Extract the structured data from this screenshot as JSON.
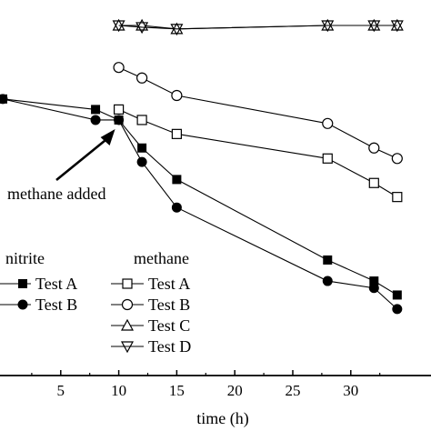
{
  "chart_data": {
    "type": "line",
    "title": "",
    "xlabel": "time (h)",
    "ylabel": "",
    "xlim": [
      0,
      36.6
    ],
    "ylim": [
      0,
      1
    ],
    "x_ticks": [
      5,
      10,
      15,
      20,
      25,
      30
    ],
    "grid": false,
    "annotation": "methane added",
    "legend_groups": [
      {
        "heading": "nitrite",
        "entries": [
          "Test A",
          "Test B"
        ]
      },
      {
        "heading": "methane",
        "entries": [
          "Test A",
          "Test B",
          "Test C",
          "Test D"
        ]
      }
    ],
    "series": [
      {
        "group": "nitrite",
        "name": "Test A",
        "marker": "filled-square",
        "x": [
          0,
          8,
          10,
          12,
          15,
          28,
          32,
          34
        ],
        "y": [
          0.79,
          0.76,
          0.73,
          0.65,
          0.56,
          0.33,
          0.27,
          0.23
        ]
      },
      {
        "group": "nitrite",
        "name": "Test B",
        "marker": "filled-circle",
        "x": [
          0,
          8,
          10,
          12,
          15,
          28,
          32,
          34
        ],
        "y": [
          0.79,
          0.73,
          0.73,
          0.61,
          0.48,
          0.27,
          0.25,
          0.19
        ]
      },
      {
        "group": "methane",
        "name": "Test A",
        "marker": "open-square",
        "x": [
          10,
          12,
          15,
          28,
          32,
          34
        ],
        "y": [
          0.76,
          0.73,
          0.69,
          0.62,
          0.55,
          0.51
        ]
      },
      {
        "group": "methane",
        "name": "Test B",
        "marker": "open-circle",
        "x": [
          10,
          12,
          15,
          28,
          32,
          34
        ],
        "y": [
          0.88,
          0.85,
          0.8,
          0.72,
          0.65,
          0.62
        ]
      },
      {
        "group": "methane",
        "name": "Test C",
        "marker": "open-triangle-up",
        "x": [
          10,
          12,
          15,
          28,
          32,
          34
        ],
        "y": [
          1.0,
          1.0,
          0.99,
          1.0,
          1.0,
          1.0
        ]
      },
      {
        "group": "methane",
        "name": "Test D",
        "marker": "open-triangle-down",
        "x": [
          10,
          12,
          15,
          28,
          32,
          34
        ],
        "y": [
          1.0,
          0.995,
          0.99,
          1.0,
          1.0,
          1.0
        ]
      }
    ]
  }
}
